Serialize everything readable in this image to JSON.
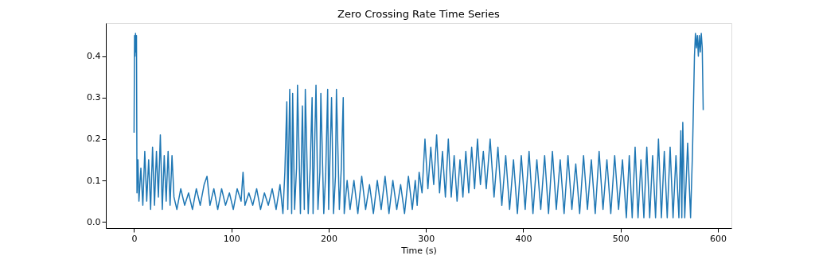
{
  "chart_data": {
    "type": "line",
    "title": "Zero Crossing Rate Time Series",
    "xlabel": "Time (s)",
    "xlim": [
      -29,
      614
    ],
    "ylim": [
      -0.015,
      0.48
    ],
    "xticks": [
      0,
      100,
      200,
      300,
      400,
      500,
      600
    ],
    "yticks": [
      {
        "value": 0,
        "label": "0.0"
      },
      0.1,
      0.2,
      0.3,
      0.4
    ],
    "grid": false,
    "series": [
      {
        "color": "#1f77b4",
        "x": [
          0,
          0.5,
          1,
          1.5,
          2,
          2.5,
          3,
          4,
          5,
          7,
          9,
          11,
          13,
          15,
          17,
          19,
          21,
          23,
          25,
          27,
          29,
          31,
          33,
          35,
          37,
          39,
          41,
          44,
          48,
          52,
          56,
          60,
          64,
          68,
          72,
          75,
          78,
          82,
          86,
          90,
          94,
          98,
          102,
          106,
          110,
          112,
          114,
          118,
          122,
          126,
          130,
          134,
          138,
          142,
          146,
          150,
          153,
          155,
          157,
          158,
          160,
          162,
          163,
          165,
          167,
          168,
          171,
          173,
          175,
          176,
          179,
          181,
          183,
          184,
          187,
          189,
          191,
          192,
          195,
          197,
          199,
          200,
          203,
          205,
          207,
          208,
          211,
          213,
          215,
          216,
          219,
          222,
          226,
          230,
          234,
          238,
          242,
          246,
          250,
          254,
          258,
          262,
          266,
          270,
          274,
          278,
          282,
          286,
          289,
          291,
          293,
          296,
          299,
          302,
          305,
          308,
          311,
          314,
          317,
          320,
          323,
          326,
          329,
          332,
          335,
          338,
          341,
          344,
          347,
          350,
          353,
          356,
          359,
          362,
          366,
          370,
          374,
          378,
          382,
          386,
          390,
          394,
          398,
          402,
          406,
          410,
          414,
          418,
          422,
          426,
          430,
          434,
          438,
          442,
          446,
          450,
          454,
          458,
          462,
          466,
          470,
          474,
          478,
          482,
          486,
          490,
          494,
          498,
          502,
          506,
          509,
          512,
          515,
          518,
          521,
          524,
          527,
          530,
          533,
          536,
          539,
          542,
          545,
          548,
          551,
          554,
          557,
          560,
          562,
          563,
          564,
          566,
          569,
          572,
          574,
          576,
          577,
          578,
          579,
          580,
          581,
          582,
          583,
          584,
          585
        ],
        "values": [
          0.215,
          0.45,
          0.4,
          0.455,
          0.41,
          0.45,
          0.07,
          0.15,
          0.05,
          0.13,
          0.04,
          0.17,
          0.05,
          0.15,
          0.03,
          0.18,
          0.04,
          0.17,
          0.06,
          0.21,
          0.03,
          0.16,
          0.05,
          0.17,
          0.04,
          0.16,
          0.06,
          0.03,
          0.08,
          0.04,
          0.07,
          0.03,
          0.08,
          0.04,
          0.09,
          0.11,
          0.04,
          0.08,
          0.03,
          0.08,
          0.04,
          0.07,
          0.03,
          0.08,
          0.05,
          0.12,
          0.04,
          0.07,
          0.04,
          0.08,
          0.03,
          0.07,
          0.04,
          0.08,
          0.03,
          0.09,
          0.02,
          0.12,
          0.29,
          0.03,
          0.32,
          0.02,
          0.31,
          0.03,
          0.13,
          0.33,
          0.02,
          0.28,
          0.03,
          0.32,
          0.02,
          0.13,
          0.3,
          0.02,
          0.33,
          0.03,
          0.12,
          0.31,
          0.02,
          0.12,
          0.32,
          0.03,
          0.3,
          0.02,
          0.11,
          0.32,
          0.03,
          0.13,
          0.3,
          0.02,
          0.1,
          0.03,
          0.1,
          0.02,
          0.11,
          0.03,
          0.09,
          0.02,
          0.1,
          0.03,
          0.11,
          0.02,
          0.1,
          0.03,
          0.09,
          0.02,
          0.11,
          0.03,
          0.1,
          0.04,
          0.12,
          0.07,
          0.2,
          0.08,
          0.18,
          0.09,
          0.21,
          0.07,
          0.17,
          0.06,
          0.2,
          0.06,
          0.16,
          0.05,
          0.15,
          0.06,
          0.17,
          0.07,
          0.18,
          0.08,
          0.2,
          0.09,
          0.17,
          0.08,
          0.2,
          0.06,
          0.18,
          0.04,
          0.16,
          0.03,
          0.15,
          0.02,
          0.16,
          0.03,
          0.17,
          0.02,
          0.15,
          0.03,
          0.16,
          0.02,
          0.17,
          0.03,
          0.15,
          0.02,
          0.16,
          0.03,
          0.14,
          0.02,
          0.16,
          0.03,
          0.15,
          0.02,
          0.17,
          0.03,
          0.15,
          0.02,
          0.16,
          0.03,
          0.15,
          0.01,
          0.16,
          0.01,
          0.18,
          0.01,
          0.15,
          0.01,
          0.18,
          0.01,
          0.16,
          0.01,
          0.2,
          0.01,
          0.17,
          0.01,
          0.18,
          0.01,
          0.16,
          0.01,
          0.22,
          0.01,
          0.24,
          0.01,
          0.19,
          0.01,
          0.17,
          0.4,
          0.455,
          0.42,
          0.45,
          0.4,
          0.45,
          0.41,
          0.455,
          0.42,
          0.27
        ]
      }
    ]
  }
}
